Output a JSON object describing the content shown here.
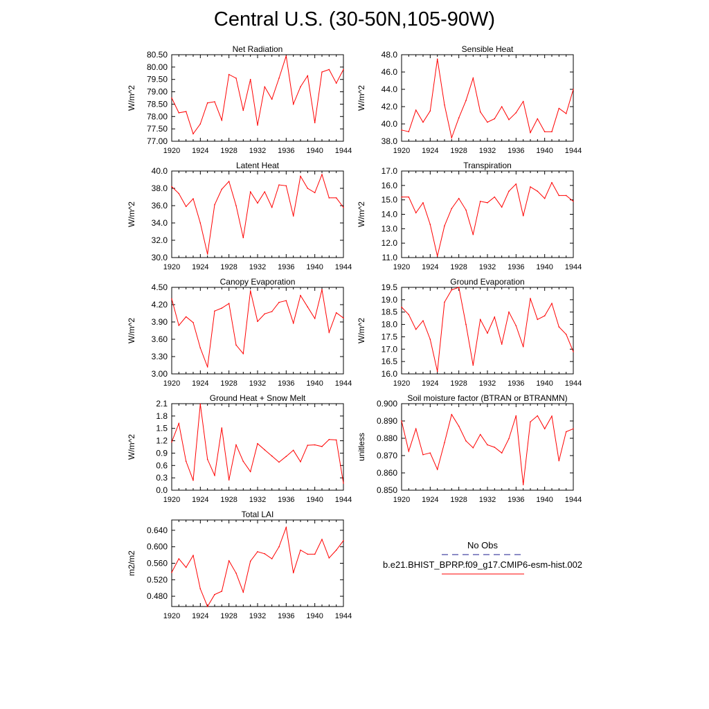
{
  "page": {
    "title": "Central U.S. (30-50N,105-90W)"
  },
  "colors": {
    "model": "#ff0000",
    "obs": "#1a1a8c",
    "axis": "#000000"
  },
  "legend": {
    "obs_label": "No Obs",
    "model_label": "b.e21.BHIST_BPRP.f09_g17.CMIP6-esm-hist.002"
  },
  "chart_data": [
    {
      "type": "line",
      "title": "Net Radiation",
      "ylabel": "W/m^2",
      "xlim": [
        1920,
        1944
      ],
      "ylim": [
        77.0,
        80.5
      ],
      "xticks": [
        "1920",
        "1924",
        "1928",
        "1932",
        "1936",
        "1940",
        "1944"
      ],
      "yticks": [
        "77.00",
        "77.50",
        "78.00",
        "78.50",
        "79.00",
        "79.50",
        "80.00",
        "80.50"
      ],
      "x": [
        1920,
        1921,
        1922,
        1923,
        1924,
        1925,
        1926,
        1927,
        1928,
        1929,
        1930,
        1931,
        1932,
        1933,
        1934,
        1935,
        1936,
        1937,
        1938,
        1939,
        1940,
        1941,
        1942,
        1943,
        1944
      ],
      "series": [
        {
          "values": [
            78.75,
            78.15,
            78.2,
            77.3,
            77.7,
            78.55,
            78.6,
            77.85,
            79.7,
            79.55,
            78.25,
            79.5,
            77.65,
            79.2,
            78.7,
            79.55,
            80.45,
            78.5,
            79.2,
            79.65,
            77.75,
            79.8,
            79.9,
            79.35,
            79.9
          ]
        }
      ]
    },
    {
      "type": "line",
      "title": "Sensible Heat",
      "ylabel": "W/m^2",
      "xlim": [
        1920,
        1944
      ],
      "ylim": [
        38.0,
        48.0
      ],
      "xticks": [
        "1920",
        "1924",
        "1928",
        "1932",
        "1936",
        "1940",
        "1944"
      ],
      "yticks": [
        "38.0",
        "40.0",
        "42.0",
        "44.0",
        "46.0",
        "48.0"
      ],
      "x": [
        1920,
        1921,
        1922,
        1923,
        1924,
        1925,
        1926,
        1927,
        1928,
        1929,
        1930,
        1931,
        1932,
        1933,
        1934,
        1935,
        1936,
        1937,
        1938,
        1939,
        1940,
        1941,
        1942,
        1943,
        1944
      ],
      "series": [
        {
          "values": [
            39.3,
            39.1,
            41.6,
            40.2,
            41.5,
            47.5,
            42.2,
            38.4,
            40.7,
            42.7,
            45.3,
            41.4,
            40.2,
            40.6,
            42.0,
            40.5,
            41.3,
            42.6,
            39.0,
            40.6,
            39.1,
            39.1,
            41.8,
            41.2,
            44.0
          ]
        }
      ]
    },
    {
      "type": "line",
      "title": "Latent Heat",
      "ylabel": "W/m^2",
      "xlim": [
        1920,
        1944
      ],
      "ylim": [
        30.0,
        40.0
      ],
      "xticks": [
        "1920",
        "1924",
        "1928",
        "1932",
        "1936",
        "1940",
        "1944"
      ],
      "yticks": [
        "30.0",
        "32.0",
        "34.0",
        "36.0",
        "38.0",
        "40.0"
      ],
      "x": [
        1920,
        1921,
        1922,
        1923,
        1924,
        1925,
        1926,
        1927,
        1928,
        1929,
        1930,
        1931,
        1932,
        1933,
        1934,
        1935,
        1936,
        1937,
        1938,
        1939,
        1940,
        1941,
        1942,
        1943,
        1944
      ],
      "series": [
        {
          "values": [
            38.2,
            37.4,
            35.9,
            36.8,
            34.0,
            30.4,
            36.1,
            37.9,
            38.8,
            36.0,
            32.3,
            37.6,
            36.3,
            37.6,
            35.8,
            38.4,
            38.3,
            34.8,
            39.4,
            38.0,
            37.5,
            39.6,
            36.9,
            36.9,
            35.8
          ]
        }
      ]
    },
    {
      "type": "line",
      "title": "Transpiration",
      "ylabel": "W/m^2",
      "xlim": [
        1920,
        1944
      ],
      "ylim": [
        11.0,
        17.0
      ],
      "xticks": [
        "1920",
        "1924",
        "1928",
        "1932",
        "1936",
        "1940",
        "1944"
      ],
      "yticks": [
        "11.0",
        "12.0",
        "13.0",
        "14.0",
        "15.0",
        "16.0",
        "17.0"
      ],
      "x": [
        1920,
        1921,
        1922,
        1923,
        1924,
        1925,
        1926,
        1927,
        1928,
        1929,
        1930,
        1931,
        1932,
        1933,
        1934,
        1935,
        1936,
        1937,
        1938,
        1939,
        1940,
        1941,
        1942,
        1943,
        1944
      ],
      "series": [
        {
          "values": [
            15.2,
            15.2,
            14.1,
            14.8,
            13.3,
            11.1,
            13.2,
            14.4,
            15.1,
            14.3,
            12.6,
            14.9,
            14.8,
            15.2,
            14.5,
            15.6,
            16.1,
            13.9,
            15.9,
            15.6,
            15.1,
            16.2,
            15.3,
            15.3,
            14.9
          ]
        }
      ]
    },
    {
      "type": "line",
      "title": "Canopy Evaporation",
      "ylabel": "W/m^2",
      "xlim": [
        1920,
        1944
      ],
      "ylim": [
        3.0,
        4.5
      ],
      "xticks": [
        "1920",
        "1924",
        "1928",
        "1932",
        "1936",
        "1940",
        "1944"
      ],
      "yticks": [
        "3.00",
        "3.30",
        "3.60",
        "3.90",
        "4.20",
        "4.50"
      ],
      "x": [
        1920,
        1921,
        1922,
        1923,
        1924,
        1925,
        1926,
        1927,
        1928,
        1929,
        1930,
        1931,
        1932,
        1933,
        1934,
        1935,
        1936,
        1937,
        1938,
        1939,
        1940,
        1941,
        1942,
        1943,
        1944
      ],
      "series": [
        {
          "values": [
            4.3,
            3.84,
            3.99,
            3.89,
            3.45,
            3.12,
            4.09,
            4.14,
            4.22,
            3.5,
            3.35,
            4.44,
            3.91,
            4.04,
            4.08,
            4.24,
            4.27,
            3.88,
            4.36,
            4.16,
            3.96,
            4.46,
            3.72,
            4.06,
            3.97
          ]
        }
      ]
    },
    {
      "type": "line",
      "title": "Ground Evaporation",
      "ylabel": "W/m^2",
      "xlim": [
        1920,
        1944
      ],
      "ylim": [
        16.0,
        19.5
      ],
      "xticks": [
        "1920",
        "1924",
        "1928",
        "1932",
        "1936",
        "1940",
        "1944"
      ],
      "yticks": [
        "16.0",
        "16.5",
        "17.0",
        "17.5",
        "18.0",
        "18.5",
        "19.0",
        "19.5"
      ],
      "x": [
        1920,
        1921,
        1922,
        1923,
        1924,
        1925,
        1926,
        1927,
        1928,
        1929,
        1930,
        1931,
        1932,
        1933,
        1934,
        1935,
        1936,
        1937,
        1938,
        1939,
        1940,
        1941,
        1942,
        1943,
        1944
      ],
      "series": [
        {
          "values": [
            18.7,
            18.4,
            17.8,
            18.15,
            17.4,
            16.1,
            18.9,
            19.4,
            19.5,
            18.0,
            16.35,
            18.2,
            17.65,
            18.3,
            17.2,
            18.5,
            17.95,
            17.1,
            19.05,
            18.2,
            18.35,
            18.85,
            17.9,
            17.6,
            16.9
          ]
        }
      ]
    },
    {
      "type": "line",
      "title": "Ground Heat + Snow Melt",
      "ylabel": "W/m^2",
      "xlim": [
        1920,
        1944
      ],
      "ylim": [
        0.0,
        2.1
      ],
      "xticks": [
        "1920",
        "1924",
        "1928",
        "1932",
        "1936",
        "1940",
        "1944"
      ],
      "yticks": [
        "0.0",
        "0.3",
        "0.6",
        "0.9",
        "1.2",
        "1.5",
        "1.8",
        "2.1"
      ],
      "x": [
        1920,
        1921,
        1922,
        1923,
        1924,
        1925,
        1926,
        1927,
        1928,
        1929,
        1930,
        1931,
        1932,
        1933,
        1934,
        1935,
        1936,
        1937,
        1938,
        1939,
        1940,
        1941,
        1942,
        1943,
        1944
      ],
      "series": [
        {
          "values": [
            1.17,
            1.62,
            0.7,
            0.24,
            2.09,
            0.75,
            0.36,
            1.51,
            0.25,
            1.1,
            0.7,
            0.45,
            1.13,
            0.98,
            0.83,
            0.68,
            0.82,
            0.97,
            0.69,
            1.09,
            1.1,
            1.06,
            1.23,
            1.22,
            0.17
          ]
        }
      ]
    },
    {
      "type": "line",
      "title": "Soil moisture factor (BTRAN or BTRANMN)",
      "ylabel": "unitless",
      "xlim": [
        1920,
        1944
      ],
      "ylim": [
        0.85,
        0.9
      ],
      "xticks": [
        "1920",
        "1924",
        "1928",
        "1932",
        "1936",
        "1940",
        "1944"
      ],
      "yticks": [
        "0.850",
        "0.860",
        "0.870",
        "0.880",
        "0.890",
        "0.900"
      ],
      "x": [
        1920,
        1921,
        1922,
        1923,
        1924,
        1925,
        1926,
        1927,
        1928,
        1929,
        1930,
        1931,
        1932,
        1933,
        1934,
        1935,
        1936,
        1937,
        1938,
        1939,
        1940,
        1941,
        1942,
        1943,
        1944
      ],
      "series": [
        {
          "values": [
            0.89,
            0.8725,
            0.8855,
            0.8705,
            0.8715,
            0.862,
            0.8775,
            0.8937,
            0.887,
            0.8785,
            0.8745,
            0.8822,
            0.8762,
            0.8748,
            0.8715,
            0.8798,
            0.893,
            0.8532,
            0.8895,
            0.893,
            0.8855,
            0.8928,
            0.867,
            0.8838,
            0.8855
          ]
        }
      ]
    },
    {
      "type": "line",
      "title": "Total LAI",
      "ylabel": "m2/m2",
      "xlim": [
        1920,
        1944
      ],
      "ylim": [
        0.455,
        0.665
      ],
      "xticks": [
        "1920",
        "1924",
        "1928",
        "1932",
        "1936",
        "1940",
        "1944"
      ],
      "yticks": [
        "0.480",
        "0.520",
        "0.560",
        "0.600",
        "0.640"
      ],
      "x": [
        1920,
        1921,
        1922,
        1923,
        1924,
        1925,
        1926,
        1927,
        1928,
        1929,
        1930,
        1931,
        1932,
        1933,
        1934,
        1935,
        1936,
        1937,
        1938,
        1939,
        1940,
        1941,
        1942,
        1943,
        1944
      ],
      "series": [
        {
          "values": [
            0.538,
            0.571,
            0.55,
            0.579,
            0.498,
            0.455,
            0.484,
            0.492,
            0.566,
            0.536,
            0.49,
            0.565,
            0.588,
            0.583,
            0.571,
            0.6,
            0.647,
            0.537,
            0.592,
            0.582,
            0.582,
            0.618,
            0.573,
            0.592,
            0.615
          ]
        }
      ]
    }
  ]
}
